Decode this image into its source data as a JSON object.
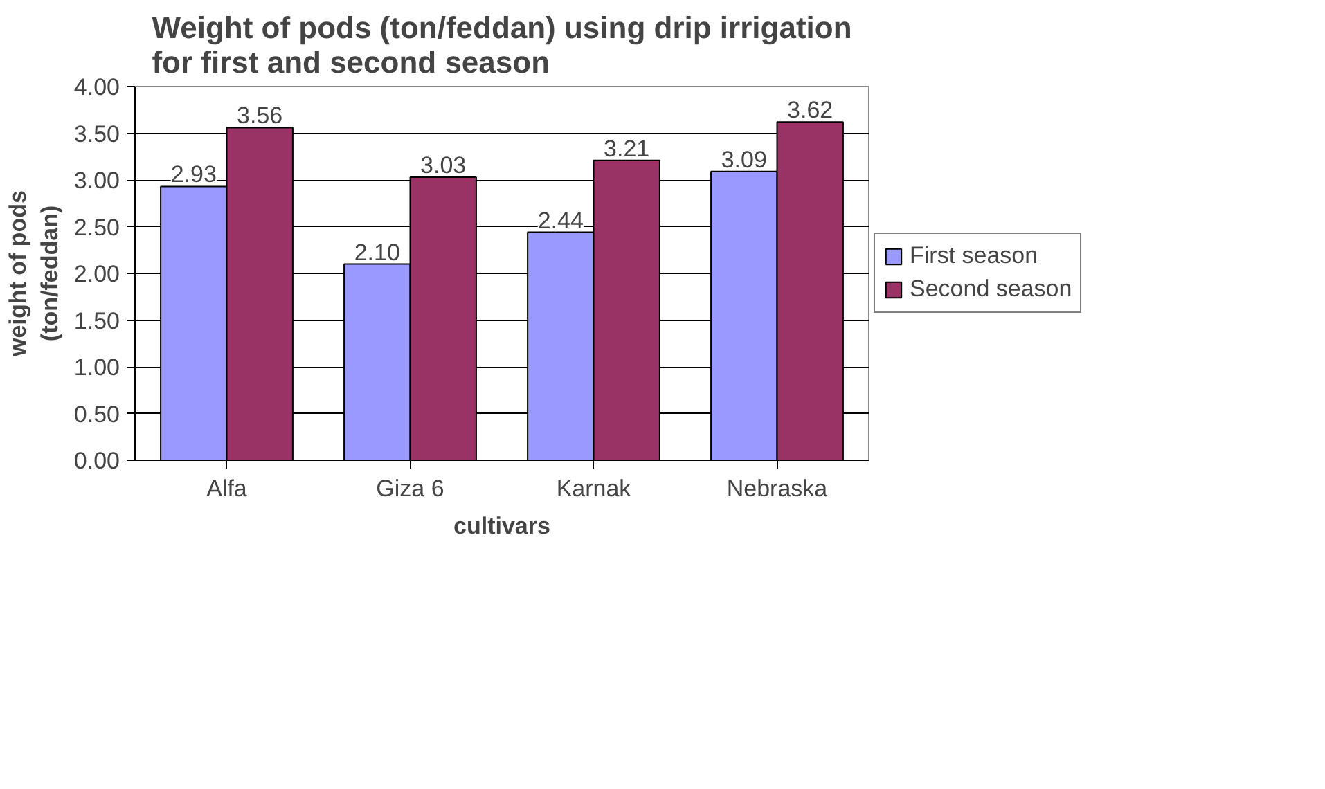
{
  "chart_data": {
    "type": "bar",
    "title": "Weight of pods (ton/feddan) using drip irrigation for first and second season",
    "xlabel": "cultivars",
    "ylabel": "weight of pods (ton/feddan)",
    "categories": [
      "Alfa",
      "Giza 6",
      "Karnak",
      "Nebraska"
    ],
    "series": [
      {
        "name": "First season",
        "color": "#9999ff",
        "values": [
          2.93,
          2.1,
          2.44,
          3.09
        ],
        "value_labels": [
          "2.93",
          "2.10",
          "2.44",
          "3.09"
        ]
      },
      {
        "name": "Second season",
        "color": "#993366",
        "values": [
          3.56,
          3.03,
          3.21,
          3.62
        ],
        "value_labels": [
          "3.56",
          "3.03",
          "3.21",
          "3.62"
        ]
      }
    ],
    "ylim": [
      0,
      4
    ],
    "yticks": [
      {
        "value": 0,
        "label": "0.00"
      },
      {
        "value": 0.5,
        "label": "0.50"
      },
      {
        "value": 1,
        "label": "1.00"
      },
      {
        "value": 1.5,
        "label": "1.50"
      },
      {
        "value": 2,
        "label": "2.00"
      },
      {
        "value": 2.5,
        "label": "2.50"
      },
      {
        "value": 3,
        "label": "3.00"
      },
      {
        "value": 3.5,
        "label": "3.50"
      },
      {
        "value": 4,
        "label": "4.00"
      }
    ],
    "grid": "y",
    "legend": "right"
  }
}
